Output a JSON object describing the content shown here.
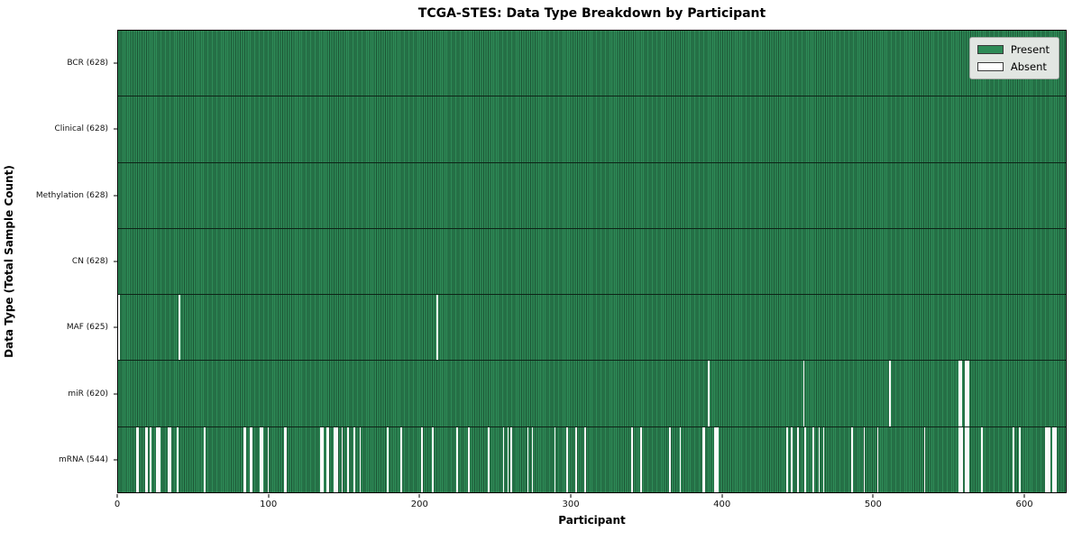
{
  "title": "TCGA-STES: Data Type Breakdown by Participant",
  "chart_data": {
    "type": "heatmap",
    "title": "TCGA-STES: Data Type Breakdown by Participant",
    "xlabel": "Participant",
    "ylabel": "Data Type (Total Sample Count)",
    "x_ticks": [
      0,
      100,
      200,
      300,
      400,
      500,
      600
    ],
    "x_range": [
      0,
      628
    ],
    "n_participants": 628,
    "grid": false,
    "legend_position": "upper right",
    "legend": [
      {
        "label": "Present",
        "color": "#2e8b57"
      },
      {
        "label": "Absent",
        "color": "#ffffff"
      }
    ],
    "rows": [
      {
        "label": "BCR (628)",
        "data_type": "BCR",
        "present_count": 628,
        "absent_count": 0,
        "absent_participants": []
      },
      {
        "label": "Clinical (628)",
        "data_type": "Clinical",
        "present_count": 628,
        "absent_count": 0,
        "absent_participants": []
      },
      {
        "label": "Methylation (628)",
        "data_type": "Methylation",
        "present_count": 628,
        "absent_count": 0,
        "absent_participants": []
      },
      {
        "label": "CN (628)",
        "data_type": "CN",
        "present_count": 628,
        "absent_count": 0,
        "absent_participants": []
      },
      {
        "label": "MAF (625)",
        "data_type": "MAF",
        "present_count": 625,
        "absent_count": 3,
        "absent_participants": [
          0,
          40,
          211
        ]
      },
      {
        "label": "miR (620)",
        "data_type": "miR",
        "present_count": 620,
        "absent_count": 8,
        "absent_participants": [
          391,
          454,
          511,
          557,
          558,
          561,
          562,
          563
        ]
      },
      {
        "label": "mRNA (544)",
        "data_type": "mRNA",
        "present_count": 544,
        "absent_count": 84,
        "absent_participants": [
          12,
          13,
          18,
          19,
          21,
          25,
          26,
          27,
          33,
          34,
          39,
          57,
          83,
          84,
          87,
          88,
          94,
          95,
          99,
          110,
          111,
          134,
          135,
          138,
          139,
          143,
          144,
          145,
          148,
          152,
          156,
          160,
          178,
          187,
          201,
          208,
          224,
          232,
          245,
          255,
          258,
          260,
          271,
          274,
          289,
          297,
          303,
          309,
          340,
          346,
          365,
          372,
          387,
          388,
          395,
          396,
          397,
          443,
          446,
          450,
          455,
          460,
          464,
          467,
          486,
          494,
          503,
          534,
          557,
          558,
          559,
          561,
          562,
          563,
          572,
          593,
          597,
          614,
          615,
          616,
          617,
          619,
          620,
          621
        ]
      }
    ],
    "colors": {
      "present": "#2e8b57",
      "present_edge": "#1c5434",
      "absent": "#fbfbfb",
      "row_divider": "#0d2417",
      "frame": "#000000",
      "legend_bg": "#e2e6e2"
    }
  }
}
